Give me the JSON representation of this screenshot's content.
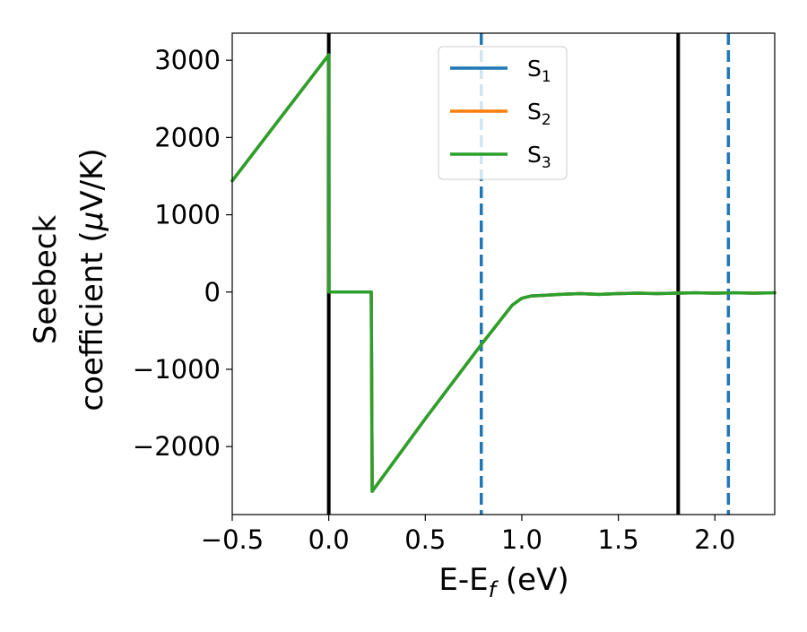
{
  "chart_data": {
    "type": "line",
    "xlabel": {
      "main": "E-E",
      "sub": "f",
      "tail": " (eV)"
    },
    "ylabel": {
      "line1": "Seebeck",
      "line2_pre": "coefficient  (",
      "line2_mu": "μ",
      "line2_post": "V/K)"
    },
    "xlim": [
      -0.5,
      2.31
    ],
    "ylim": [
      -2880,
      3350
    ],
    "x_ticks": [
      -0.5,
      0.0,
      0.5,
      1.0,
      1.5,
      2.0
    ],
    "x_tick_labels": [
      "−0.5",
      "0.0",
      "0.5",
      "1.0",
      "1.5",
      "2.0"
    ],
    "y_ticks": [
      -2000,
      -1000,
      0,
      1000,
      2000,
      3000
    ],
    "y_tick_labels": [
      "−2000",
      "−1000",
      "0",
      "1000",
      "2000",
      "3000"
    ],
    "legend_position": "top-center",
    "series": [
      {
        "name": "S",
        "sub": "1",
        "color": "#1f77b4",
        "x": [
          -0.5,
          0.0,
          0.001,
          0.22,
          0.225,
          0.5,
          0.79,
          0.9,
          0.95,
          1.0,
          1.05,
          1.1,
          1.2,
          1.3,
          1.4,
          1.5,
          1.6,
          1.7,
          1.8,
          1.9,
          2.0,
          2.1,
          2.2,
          2.31
        ],
        "y": [
          1440,
          3070,
          0,
          0,
          -2580,
          -1640,
          -680,
          -330,
          -170,
          -80,
          -50,
          -45,
          -30,
          -20,
          -30,
          -20,
          -15,
          -20,
          -15,
          -10,
          -15,
          -10,
          -15,
          -10
        ]
      },
      {
        "name": "S",
        "sub": "2",
        "color": "#ff7f0e",
        "x": [
          -0.5,
          0.0,
          0.001,
          0.22,
          0.225,
          0.5,
          0.79,
          0.9,
          0.95,
          1.0,
          1.05,
          1.1,
          1.2,
          1.3,
          1.4,
          1.5,
          1.6,
          1.7,
          1.8,
          1.9,
          2.0,
          2.1,
          2.2,
          2.31
        ],
        "y": [
          1440,
          3070,
          0,
          0,
          -2580,
          -1640,
          -680,
          -330,
          -170,
          -80,
          -50,
          -45,
          -30,
          -20,
          -30,
          -20,
          -15,
          -20,
          -15,
          -10,
          -15,
          -10,
          -15,
          -10
        ]
      },
      {
        "name": "S",
        "sub": "3",
        "color": "#2ca02c",
        "x": [
          -0.5,
          0.0,
          0.001,
          0.22,
          0.225,
          0.5,
          0.79,
          0.9,
          0.95,
          1.0,
          1.05,
          1.1,
          1.2,
          1.3,
          1.4,
          1.5,
          1.6,
          1.7,
          1.8,
          1.9,
          2.0,
          2.1,
          2.2,
          2.31
        ],
        "y": [
          1440,
          3070,
          0,
          0,
          -2580,
          -1640,
          -680,
          -330,
          -170,
          -80,
          -50,
          -45,
          -30,
          -20,
          -30,
          -20,
          -15,
          -20,
          -15,
          -10,
          -15,
          -10,
          -15,
          -10
        ]
      }
    ],
    "vlines": [
      {
        "x": 0.0,
        "color": "#000000",
        "style": "solid"
      },
      {
        "x": 1.81,
        "color": "#000000",
        "style": "solid"
      },
      {
        "x": 0.79,
        "color": "#1f77b4",
        "style": "dashed"
      },
      {
        "x": 2.07,
        "color": "#1f77b4",
        "style": "dashed"
      }
    ]
  }
}
